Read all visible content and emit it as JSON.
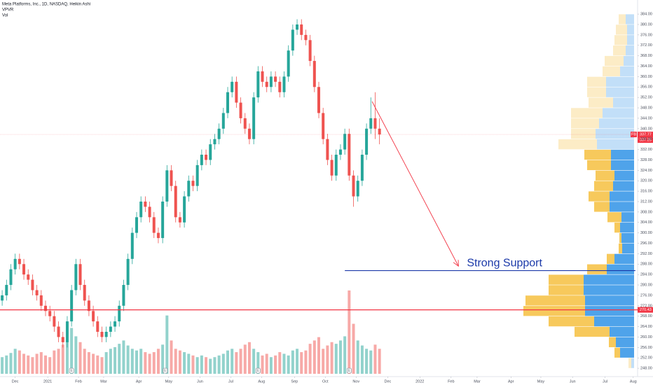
{
  "legend": {
    "symbol": "Meta Platforms, Inc., 1D, NASDAQ, Heikin Ashi",
    "indicators": [
      "VPVR",
      "Vol"
    ]
  },
  "chart_data": {
    "type": "candlestick",
    "open": [
      274,
      276,
      280,
      286,
      290,
      288,
      284,
      282,
      278,
      276,
      272,
      270,
      268,
      264,
      260,
      258,
      266,
      278,
      288,
      280,
      274,
      270,
      266,
      262,
      260,
      262,
      264,
      266,
      272,
      280,
      290,
      300,
      306,
      312,
      310,
      306,
      300,
      298,
      312,
      324,
      318,
      306,
      304,
      314,
      320,
      318,
      326,
      330,
      328,
      334,
      336,
      340,
      346,
      354,
      358,
      350,
      344,
      340,
      336,
      352,
      362,
      358,
      356,
      360,
      358,
      354,
      360,
      370,
      378,
      380,
      376,
      374,
      366,
      356,
      346,
      336,
      328,
      322,
      330,
      332,
      338,
      322,
      314,
      320,
      330,
      340,
      344,
      340
    ],
    "high": [
      278,
      282,
      288,
      292,
      292,
      290,
      286,
      284,
      280,
      278,
      274,
      272,
      270,
      266,
      262,
      268,
      280,
      290,
      290,
      282,
      276,
      272,
      268,
      264,
      264,
      266,
      268,
      274,
      282,
      292,
      302,
      308,
      314,
      314,
      312,
      308,
      302,
      314,
      326,
      326,
      320,
      308,
      316,
      322,
      322,
      328,
      332,
      332,
      336,
      338,
      342,
      348,
      356,
      360,
      360,
      352,
      346,
      342,
      354,
      364,
      364,
      360,
      362,
      362,
      360,
      362,
      372,
      380,
      382,
      382,
      378,
      376,
      368,
      358,
      348,
      338,
      330,
      332,
      334,
      340,
      340,
      324,
      322,
      332,
      342,
      352,
      354,
      344
    ],
    "low": [
      272,
      274,
      278,
      284,
      286,
      282,
      280,
      276,
      274,
      270,
      268,
      266,
      262,
      258,
      256,
      256,
      264,
      276,
      278,
      272,
      268,
      264,
      260,
      258,
      258,
      260,
      262,
      264,
      270,
      278,
      288,
      298,
      304,
      308,
      304,
      298,
      296,
      296,
      310,
      316,
      304,
      302,
      302,
      312,
      316,
      316,
      324,
      326,
      326,
      332,
      334,
      338,
      344,
      352,
      348,
      342,
      338,
      334,
      334,
      350,
      356,
      354,
      354,
      356,
      352,
      352,
      358,
      368,
      376,
      374,
      372,
      364,
      354,
      344,
      334,
      326,
      320,
      320,
      328,
      330,
      320,
      310,
      312,
      318,
      328,
      338,
      336,
      334
    ],
    "close": [
      276,
      280,
      286,
      290,
      288,
      284,
      282,
      278,
      276,
      272,
      270,
      268,
      264,
      260,
      258,
      266,
      278,
      288,
      280,
      274,
      270,
      266,
      262,
      260,
      262,
      264,
      266,
      272,
      280,
      290,
      300,
      306,
      312,
      310,
      306,
      300,
      298,
      312,
      324,
      318,
      306,
      304,
      314,
      320,
      318,
      326,
      330,
      328,
      334,
      336,
      340,
      346,
      354,
      358,
      350,
      344,
      340,
      336,
      352,
      362,
      358,
      356,
      360,
      358,
      354,
      360,
      370,
      378,
      380,
      376,
      374,
      366,
      356,
      346,
      336,
      328,
      322,
      330,
      332,
      338,
      322,
      314,
      320,
      330,
      340,
      344,
      340,
      337.77
    ],
    "volume": [
      20,
      22,
      25,
      30,
      28,
      24,
      22,
      20,
      24,
      26,
      22,
      20,
      28,
      30,
      35,
      40,
      55,
      45,
      38,
      30,
      26,
      24,
      22,
      20,
      26,
      30,
      32,
      36,
      40,
      34,
      30,
      28,
      30,
      26,
      24,
      26,
      30,
      35,
      70,
      40,
      30,
      28,
      26,
      24,
      22,
      20,
      22,
      20,
      18,
      20,
      22,
      24,
      28,
      30,
      26,
      30,
      35,
      38,
      30,
      26,
      22,
      24,
      20,
      22,
      26,
      24,
      22,
      28,
      30,
      26,
      28,
      36,
      40,
      44,
      30,
      34,
      38,
      36,
      40,
      45,
      100,
      60,
      40,
      34,
      30,
      28,
      35,
      30
    ],
    "vlim": [
      0,
      105
    ],
    "up_color": "#26a69a",
    "down_color": "#ef5350",
    "xlim": [
      -0.5,
      146.5
    ],
    "xticks": [
      {
        "value": 3,
        "label": "Dec"
      },
      {
        "value": 10.5,
        "label": "2021"
      },
      {
        "value": 17.6,
        "label": "Feb"
      },
      {
        "value": 23.4,
        "label": "Mar"
      },
      {
        "value": 31.5,
        "label": "Apr"
      },
      {
        "value": 38.4,
        "label": "May"
      },
      {
        "value": 45.6,
        "label": "Jun"
      },
      {
        "value": 52.7,
        "label": "Jul"
      },
      {
        "value": 59.8,
        "label": "Aug"
      },
      {
        "value": 67.4,
        "label": "Sep"
      },
      {
        "value": 74.5,
        "label": "Oct"
      },
      {
        "value": 81.6,
        "label": "Nov"
      },
      {
        "value": 88.9,
        "label": "Dec"
      },
      {
        "value": 96.3,
        "label": "2022"
      },
      {
        "value": 103.5,
        "label": "Feb"
      },
      {
        "value": 109.5,
        "label": "Mar"
      },
      {
        "value": 117.3,
        "label": "Apr"
      },
      {
        "value": 124.2,
        "label": "May"
      },
      {
        "value": 131.5,
        "label": "Jun"
      },
      {
        "value": 139,
        "label": "Jul"
      },
      {
        "value": 145.5,
        "label": "Aug"
      }
    ],
    "ylim": [
      244.8,
      389.4
    ],
    "yticks": [
      {
        "value": 248,
        "label": "248.00"
      },
      {
        "value": 252,
        "label": "252.00"
      },
      {
        "value": 256,
        "label": "256.00"
      },
      {
        "value": 260,
        "label": "260.00"
      },
      {
        "value": 264,
        "label": "264.00"
      },
      {
        "value": 268,
        "label": "268.00"
      },
      {
        "value": 272,
        "label": "272.00"
      },
      {
        "value": 276,
        "label": "276.00"
      },
      {
        "value": 280,
        "label": "280.00"
      },
      {
        "value": 284,
        "label": "284.00"
      },
      {
        "value": 288,
        "label": "288.00"
      },
      {
        "value": 292,
        "label": "292.00"
      },
      {
        "value": 296,
        "label": "296.00"
      },
      {
        "value": 300,
        "label": "300.00"
      },
      {
        "value": 304,
        "label": "304.00"
      },
      {
        "value": 308,
        "label": "308.00"
      },
      {
        "value": 312,
        "label": "312.00"
      },
      {
        "value": 316,
        "label": "316.00"
      },
      {
        "value": 320,
        "label": "320.00"
      },
      {
        "value": 324,
        "label": "324.00"
      },
      {
        "value": 328,
        "label": "328.00"
      },
      {
        "value": 332,
        "label": "332.00"
      },
      {
        "value": 336,
        "label": "336.00"
      },
      {
        "value": 340,
        "label": "340.00"
      },
      {
        "value": 344,
        "label": "344.00"
      },
      {
        "value": 348,
        "label": "348.00"
      },
      {
        "value": 352,
        "label": "352.00"
      },
      {
        "value": 356,
        "label": "356.00"
      },
      {
        "value": 360,
        "label": "360.00"
      },
      {
        "value": 364,
        "label": "364.00"
      },
      {
        "value": 368,
        "label": "368.00"
      },
      {
        "value": 372,
        "label": "372.00"
      },
      {
        "value": 376,
        "label": "376.00"
      },
      {
        "value": 380,
        "label": "380.00"
      },
      {
        "value": 384,
        "label": "384.00"
      }
    ],
    "volume_profile": {
      "bins": [
        248,
        252,
        256,
        260,
        264,
        268,
        272,
        276,
        280,
        284,
        288,
        292,
        296,
        300,
        304,
        308,
        312,
        316,
        320,
        324,
        328,
        332,
        336,
        340,
        344,
        348,
        352,
        356,
        360,
        364,
        368,
        372,
        376,
        380,
        384
      ],
      "up": [
        4,
        20,
        26,
        35,
        57,
        70,
        70,
        72,
        72,
        39,
        28,
        17,
        18,
        20,
        18,
        35,
        35,
        30,
        28,
        33,
        33,
        53,
        55,
        50,
        45,
        30,
        40,
        40,
        20,
        15,
        12,
        10,
        10,
        12
      ],
      "down": [
        4,
        8,
        10,
        50,
        65,
        88,
        85,
        50,
        50,
        28,
        11,
        5,
        3,
        8,
        20,
        22,
        30,
        27,
        27,
        34,
        38,
        55,
        35,
        40,
        45,
        35,
        27,
        27,
        25,
        27,
        18,
        18,
        16,
        10
      ],
      "up_color": "#4fa3ea",
      "down_color": "#f7c95c",
      "value_area": [
        252,
        332
      ]
    },
    "last_price": {
      "values": [
        337.77,
        337.25
      ],
      "symbol": "FB",
      "color": "#f23645"
    },
    "horizontal_lines": [
      {
        "value": 270.43,
        "label": "270.43",
        "color": "#f23645"
      }
    ],
    "support": {
      "value": 285.5,
      "from": 79,
      "to": 146,
      "label": "Strong Support",
      "color": "#1c3aa9"
    },
    "arrow": {
      "from": [
        85.3,
        350.4
      ],
      "to": [
        105.2,
        287.2
      ],
      "color": "#f23645"
    },
    "earnings": {
      "label": "E",
      "x": [
        16,
        37.6,
        59,
        80
      ]
    }
  }
}
